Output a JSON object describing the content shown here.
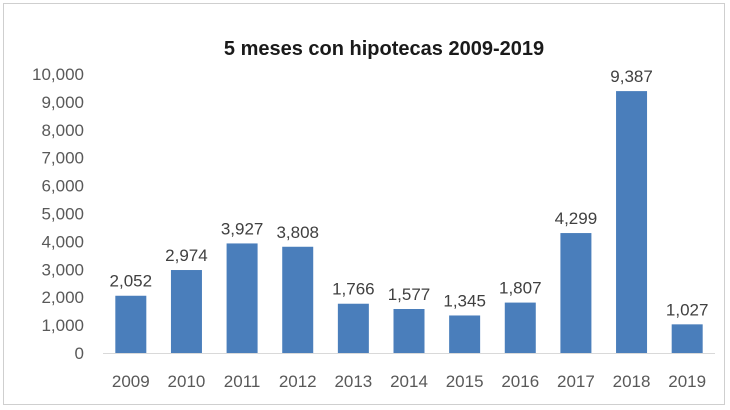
{
  "chart_data": {
    "type": "bar",
    "title": "5 meses con hipotecas 2009-2019",
    "xlabel": "",
    "ylabel": "",
    "categories": [
      "2009",
      "2010",
      "2011",
      "2012",
      "2013",
      "2014",
      "2015",
      "2016",
      "2017",
      "2018",
      "2019"
    ],
    "values": [
      2052,
      2974,
      3927,
      3808,
      1766,
      1577,
      1345,
      1807,
      4299,
      9387,
      1027
    ],
    "data_labels": [
      "2,052",
      "2,974",
      "3,927",
      "3,808",
      "1,766",
      "1,577",
      "1,345",
      "1,807",
      "4,299",
      "9,387",
      "1,027"
    ],
    "ylim": [
      0,
      10000
    ],
    "yticks": [
      0,
      1000,
      2000,
      3000,
      4000,
      5000,
      6000,
      7000,
      8000,
      9000,
      10000
    ],
    "ytick_labels": [
      "0",
      "1,000",
      "2,000",
      "3,000",
      "4,000",
      "5,000",
      "6,000",
      "7,000",
      "8,000",
      "9,000",
      "10,000"
    ],
    "bar_color": "#4a7ebb",
    "grid": false,
    "legend": "none"
  }
}
